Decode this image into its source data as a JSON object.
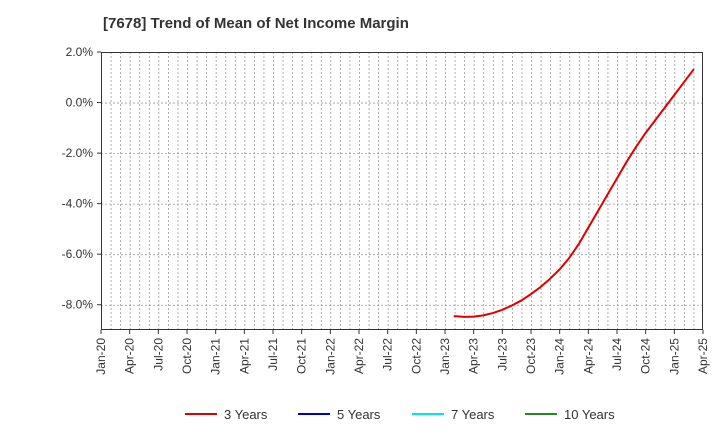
{
  "chart_data": {
    "type": "line",
    "title": "[7678]  Trend of Mean of Net Income Margin",
    "xlabel": "",
    "ylabel": "",
    "x_ticks": [
      "Jan-20",
      "Apr-20",
      "Jul-20",
      "Oct-20",
      "Jan-21",
      "Apr-21",
      "Jul-21",
      "Oct-21",
      "Jan-22",
      "Apr-22",
      "Jul-22",
      "Oct-22",
      "Jan-23",
      "Apr-23",
      "Jul-23",
      "Oct-23",
      "Jan-24",
      "Apr-24",
      "Jul-24",
      "Oct-24",
      "Jan-25",
      "Apr-25"
    ],
    "y_ticks": [
      "2.0%",
      "0.0%",
      "-2.0%",
      "-4.0%",
      "-6.0%",
      "-8.0%"
    ],
    "ylim": [
      -9.0,
      2.0
    ],
    "grid": true,
    "legend_position": "bottom",
    "series": [
      {
        "name": "3 Years",
        "color": "#dd0000",
        "points": [
          [
            "Feb-23",
            -8.45
          ],
          [
            "Mar-23",
            -8.48
          ],
          [
            "Apr-23",
            -8.47
          ],
          [
            "May-23",
            -8.42
          ],
          [
            "Jun-23",
            -8.33
          ],
          [
            "Jul-23",
            -8.2
          ],
          [
            "Aug-23",
            -8.03
          ],
          [
            "Sep-23",
            -7.83
          ],
          [
            "Oct-23",
            -7.58
          ],
          [
            "Nov-23",
            -7.3
          ],
          [
            "Dec-23",
            -6.97
          ],
          [
            "Jan-24",
            -6.6
          ],
          [
            "Feb-24",
            -6.15
          ],
          [
            "Mar-24",
            -5.6
          ],
          [
            "Apr-24",
            -4.95
          ],
          [
            "May-24",
            -4.3
          ],
          [
            "Jun-24",
            -3.65
          ],
          [
            "Jul-24",
            -3.0
          ],
          [
            "Aug-24",
            -2.35
          ],
          [
            "Sep-24",
            -1.75
          ],
          [
            "Oct-24",
            -1.2
          ],
          [
            "Nov-24",
            -0.7
          ],
          [
            "Dec-24",
            -0.2
          ],
          [
            "Jan-25",
            0.3
          ],
          [
            "Feb-25",
            0.8
          ],
          [
            "Mar-25",
            1.3
          ]
        ]
      },
      {
        "name": "5 Years",
        "color": "#0000cc",
        "points": []
      },
      {
        "name": "7 Years",
        "color": "#00e5ee",
        "points": []
      },
      {
        "name": "10 Years",
        "color": "#228b22",
        "points": []
      }
    ]
  }
}
